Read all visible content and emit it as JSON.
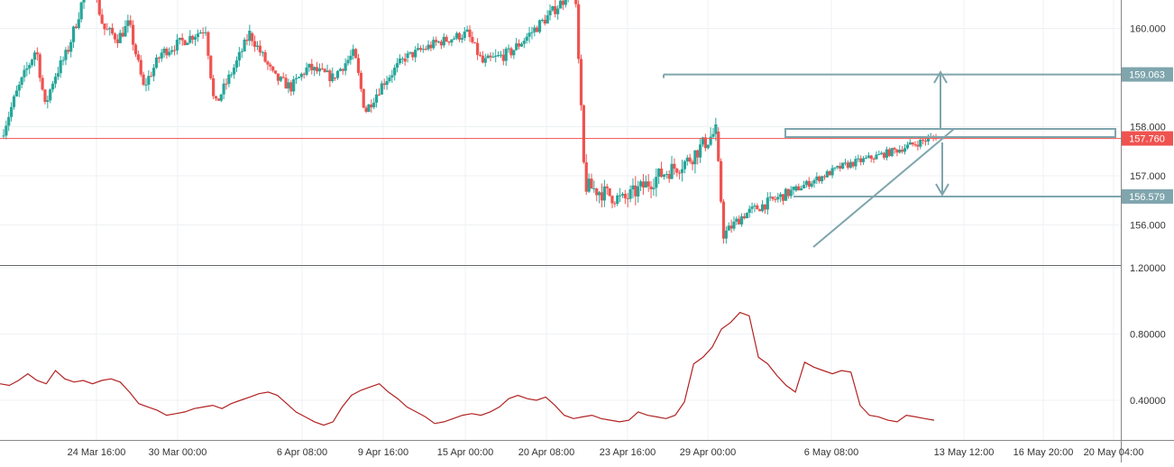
{
  "colors": {
    "up": "#26a69a",
    "down": "#ef5350",
    "drawing": "#7fa5ad",
    "price_line": "#ef5350",
    "indicator": "#b22222",
    "axis_text": "#333333",
    "grid": "#eef1f4"
  },
  "chart_data": [
    {
      "type": "candlestick",
      "title": "",
      "xlabel": "",
      "ylabel": "",
      "ylim": [
        155.1,
        161.5
      ],
      "grid": true,
      "x_ticks": [
        "24 Mar 16:00",
        "30 Mar 00:00",
        "6 Apr 08:00",
        "9 Apr 16:00",
        "15 Apr 00:00",
        "20 Apr 08:00",
        "23 Apr 16:00",
        "29 Apr 00:00",
        "6 May 08:00",
        "13 May 12:00",
        "16 May 20:00",
        "20 May 04:00"
      ],
      "y_ticks": [
        "156.000",
        "157.000",
        "158.000",
        "160.000"
      ],
      "last_price": 157.76,
      "last_price_label": "157.760",
      "levels": [
        {
          "label": "159.063",
          "value": 159.063
        },
        {
          "label": "156.579",
          "value": 156.579
        }
      ],
      "segments": [
        {
          "n": 34,
          "start": 157.8,
          "path": [
            [
              158.7,
              0.18
            ],
            [
              159.6,
              0.4
            ],
            [
              158.4,
              0.5
            ],
            [
              159.0,
              0.6
            ],
            [
              159.5,
              0.75
            ],
            [
              160.4,
              0.9
            ],
            [
              161.2,
              1.0
            ]
          ],
          "vol": 0.16
        },
        {
          "n": 28,
          "start": 161.2,
          "path": [
            [
              160.0,
              0.2
            ],
            [
              159.8,
              0.4
            ],
            [
              160.1,
              0.55
            ],
            [
              158.8,
              0.75
            ],
            [
              159.5,
              1.0
            ]
          ],
          "vol": 0.15
        },
        {
          "n": 34,
          "start": 159.5,
          "path": [
            [
              159.8,
              0.3
            ],
            [
              160.0,
              0.5
            ],
            [
              158.4,
              0.6
            ],
            [
              159.3,
              0.85
            ],
            [
              159.9,
              1.0
            ]
          ],
          "vol": 0.14
        },
        {
          "n": 32,
          "start": 159.9,
          "path": [
            [
              159.0,
              0.3
            ],
            [
              158.8,
              0.5
            ],
            [
              159.2,
              0.7
            ],
            [
              159.0,
              1.0
            ]
          ],
          "vol": 0.14
        },
        {
          "n": 28,
          "start": 159.0,
          "path": [
            [
              159.5,
              0.3
            ],
            [
              158.3,
              0.45
            ],
            [
              158.9,
              0.7
            ],
            [
              159.4,
              1.0
            ]
          ],
          "vol": 0.14
        },
        {
          "n": 30,
          "start": 159.4,
          "path": [
            [
              159.7,
              0.4
            ],
            [
              159.9,
              0.8
            ],
            [
              159.3,
              1.0
            ]
          ],
          "vol": 0.13
        },
        {
          "n": 35,
          "start": 159.3,
          "path": [
            [
              159.5,
              0.3
            ],
            [
              160.3,
              0.75
            ],
            [
              160.6,
              0.9
            ],
            [
              161.4,
              1.0
            ]
          ],
          "vol": 0.15
        },
        {
          "n": 55,
          "start": 161.4,
          "path": [
            [
              156.8,
              0.08
            ],
            [
              156.5,
              0.35
            ],
            [
              157.0,
              0.6
            ],
            [
              157.3,
              0.8
            ],
            [
              157.9,
              1.0
            ]
          ],
          "vol": 0.22
        },
        {
          "n": 30,
          "start": 157.9,
          "path": [
            [
              155.8,
              0.1
            ],
            [
              156.2,
              0.35
            ],
            [
              156.4,
              0.6
            ],
            [
              156.7,
              1.0
            ]
          ],
          "vol": 0.14
        },
        {
          "n": 55,
          "start": 156.7,
          "path": [
            [
              157.2,
              0.35
            ],
            [
              157.5,
              0.7
            ],
            [
              157.8,
              1.0
            ]
          ],
          "vol": 0.1
        }
      ]
    },
    {
      "type": "line",
      "title": "",
      "ylim": [
        0.15,
        1.2
      ],
      "y_ticks": [
        "0.40000",
        "0.80000",
        "1.20000"
      ],
      "series": [
        {
          "values": [
            0.5,
            0.49,
            0.52,
            0.56,
            0.52,
            0.5,
            0.58,
            0.53,
            0.51,
            0.52,
            0.5,
            0.52,
            0.53,
            0.51,
            0.45,
            0.38,
            0.36,
            0.34,
            0.31,
            0.32,
            0.33,
            0.35,
            0.36,
            0.37,
            0.35,
            0.38,
            0.4,
            0.42,
            0.44,
            0.45,
            0.43,
            0.38,
            0.33,
            0.3,
            0.27,
            0.25,
            0.27,
            0.36,
            0.43,
            0.46,
            0.48,
            0.5,
            0.45,
            0.41,
            0.36,
            0.33,
            0.3,
            0.26,
            0.27,
            0.29,
            0.31,
            0.32,
            0.31,
            0.33,
            0.36,
            0.41,
            0.43,
            0.41,
            0.4,
            0.42,
            0.37,
            0.31,
            0.29,
            0.3,
            0.31,
            0.29,
            0.28,
            0.27,
            0.28,
            0.33,
            0.31,
            0.3,
            0.29,
            0.31,
            0.39,
            0.62,
            0.66,
            0.72,
            0.83,
            0.87,
            0.93,
            0.91,
            0.66,
            0.62,
            0.55,
            0.49,
            0.45,
            0.63,
            0.6,
            0.58,
            0.56,
            0.58,
            0.57,
            0.37,
            0.31,
            0.3,
            0.28,
            0.27,
            0.31,
            0.3,
            0.29,
            0.28
          ]
        }
      ]
    }
  ]
}
